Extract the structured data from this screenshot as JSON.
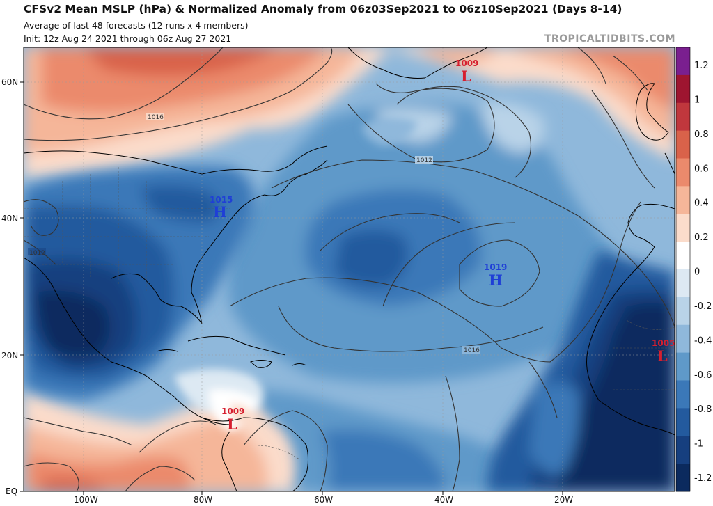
{
  "header": {
    "title": "CFSv2 Mean MSLP (hPa) & Normalized Anomaly from 06z03Sep2021 to 06z10Sep2021 (Days 8-14)",
    "subtitle_line1": "Average of last 48 forecasts (12 runs x 4 members)",
    "subtitle_line2": "Init: 12z Aug 24 2021 through 06z Aug 27 2021",
    "credit": "TROPICALTIDBITS.COM"
  },
  "axes": {
    "lat_labels": [
      "60N",
      "40N",
      "20N",
      "EQ"
    ],
    "lon_labels": [
      "100W",
      "80W",
      "60W",
      "40W",
      "20W"
    ]
  },
  "colorbar": {
    "ticks": [
      "1.2",
      "1",
      "0.8",
      "0.6",
      "0.4",
      "0.2",
      "0",
      "-0.2",
      "-0.4",
      "-0.6",
      "-0.8",
      "-1",
      "-1.2"
    ],
    "colors": [
      "#7a1f8f",
      "#9e1530",
      "#c0373d",
      "#d9624a",
      "#eb8a6c",
      "#f5b699",
      "#fbdccb",
      "#ffffff",
      "#dde9f3",
      "#b9d3e8",
      "#8fb8db",
      "#5f99c9",
      "#3b78b8",
      "#235a9e",
      "#163f7f",
      "#0b2a5e"
    ]
  },
  "pressure_centers": [
    {
      "type": "L",
      "value": "1009",
      "name": "greenland-low"
    },
    {
      "type": "H",
      "value": "1015",
      "name": "us-east-high"
    },
    {
      "type": "H",
      "value": "1019",
      "name": "azores-high"
    },
    {
      "type": "L",
      "value": "1005",
      "name": "africa-low"
    },
    {
      "type": "L",
      "value": "1009",
      "name": "caribbean-low"
    }
  ],
  "isobar_labels": [
    "1016",
    "1012",
    "1012",
    "1016"
  ],
  "colors": {
    "high_marker": "#1f3fd6",
    "low_marker": "#d61f2f"
  }
}
